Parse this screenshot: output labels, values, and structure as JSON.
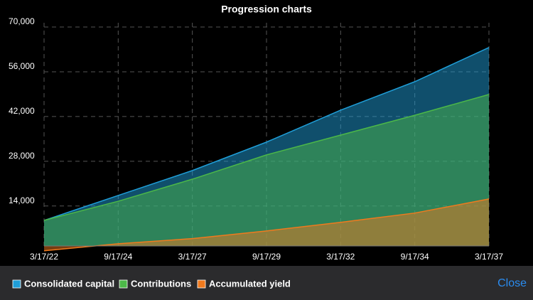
{
  "chart_data": {
    "type": "area",
    "title": "Progression charts",
    "categories": [
      "3/17/22",
      "9/17/24",
      "3/17/27",
      "9/17/29",
      "3/17/32",
      "9/17/34",
      "3/17/37"
    ],
    "series": [
      {
        "name": "Consolidated capital",
        "color": "#1f9ed8",
        "values": [
          9500,
          17300,
          25100,
          34000,
          44000,
          52900,
          63600
        ]
      },
      {
        "name": "Contributions",
        "color": "#4cb848",
        "values": [
          9500,
          15500,
          22400,
          30000,
          36200,
          42400,
          48900
        ]
      },
      {
        "name": "Accumulated yield",
        "color": "#f07a1e",
        "values": [
          0,
          2200,
          3800,
          6200,
          8900,
          11800,
          16200
        ]
      }
    ],
    "ylim": [
      1500,
      70000
    ],
    "yticks": [
      {
        "value": 14000,
        "label": "14,000"
      },
      {
        "value": 28000,
        "label": "28,000"
      },
      {
        "value": 42000,
        "label": "42,000"
      },
      {
        "value": 56000,
        "label": "56,000"
      },
      {
        "value": 70000,
        "label": "70,000"
      }
    ],
    "grid": true
  },
  "ui": {
    "close": "Close"
  }
}
